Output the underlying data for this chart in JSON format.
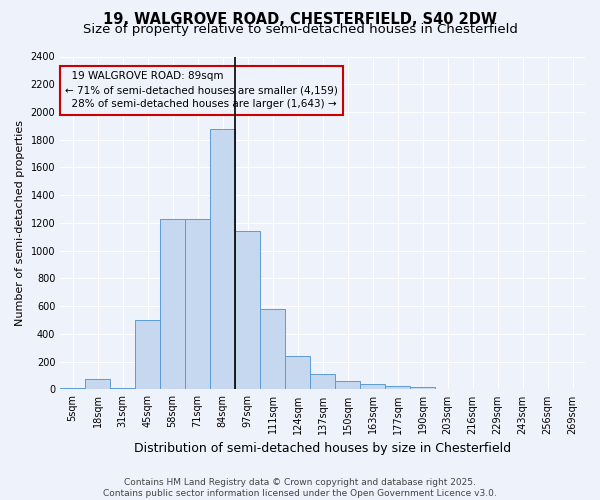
{
  "title": "19, WALGROVE ROAD, CHESTERFIELD, S40 2DW",
  "subtitle": "Size of property relative to semi-detached houses in Chesterfield",
  "xlabel": "Distribution of semi-detached houses by size in Chesterfield",
  "ylabel": "Number of semi-detached properties",
  "footer_line1": "Contains HM Land Registry data © Crown copyright and database right 2025.",
  "footer_line2": "Contains public sector information licensed under the Open Government Licence v3.0.",
  "bin_labels": [
    "5sqm",
    "18sqm",
    "31sqm",
    "45sqm",
    "58sqm",
    "71sqm",
    "84sqm",
    "97sqm",
    "111sqm",
    "124sqm",
    "137sqm",
    "150sqm",
    "163sqm",
    "177sqm",
    "190sqm",
    "203sqm",
    "216sqm",
    "229sqm",
    "243sqm",
    "256sqm",
    "269sqm"
  ],
  "bar_values": [
    10,
    75,
    10,
    500,
    1230,
    1230,
    1880,
    1140,
    580,
    240,
    110,
    60,
    40,
    25,
    15,
    5,
    5,
    5,
    0,
    0,
    0
  ],
  "bar_color": "#c5d8f0",
  "bar_edge_color": "#5b9bd5",
  "property_label": "19 WALGROVE ROAD: 89sqm",
  "pct_smaller": 71,
  "count_smaller": 4159,
  "pct_larger": 28,
  "count_larger": 1643,
  "vline_color": "#000000",
  "annotation_box_color": "#cc0000",
  "ylim": [
    0,
    2400
  ],
  "yticks": [
    0,
    200,
    400,
    600,
    800,
    1000,
    1200,
    1400,
    1600,
    1800,
    2000,
    2200,
    2400
  ],
  "background_color": "#eef2fb",
  "grid_color": "#ffffff",
  "title_fontsize": 10.5,
  "subtitle_fontsize": 9.5,
  "ylabel_fontsize": 8,
  "xlabel_fontsize": 9,
  "tick_fontsize": 7,
  "annotation_fontsize": 7.5,
  "footer_fontsize": 6.5,
  "vline_x_index": 6.5
}
